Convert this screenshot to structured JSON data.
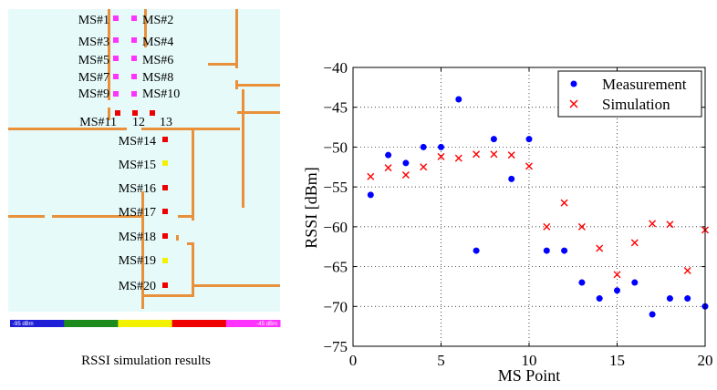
{
  "simulation_panel": {
    "caption": "RSSI simulation results",
    "scale_min_label": "-95 dBm",
    "scale_max_label": "-45 dBm",
    "scale_colors": [
      "#1f1fd8",
      "#1c8a1c",
      "#f2f200",
      "#ee0000",
      "#ff33ff"
    ],
    "background_color": "#e6fafa",
    "wall_color": "#e8913a",
    "ms_labels": [
      {
        "text": "MS#1",
        "anchor": "end"
      },
      {
        "text": "MS#2",
        "anchor": "start"
      },
      {
        "text": "MS#3",
        "anchor": "end"
      },
      {
        "text": "MS#4",
        "anchor": "start"
      },
      {
        "text": "MS#5",
        "anchor": "end"
      },
      {
        "text": "MS#6",
        "anchor": "start"
      },
      {
        "text": "MS#7",
        "anchor": "end"
      },
      {
        "text": "MS#8",
        "anchor": "start"
      },
      {
        "text": "MS#9",
        "anchor": "end"
      },
      {
        "text": "MS#10",
        "anchor": "start"
      },
      {
        "text": "MS#11",
        "anchor": "end"
      },
      {
        "text": "12",
        "anchor": "middle"
      },
      {
        "text": "13",
        "anchor": "start"
      },
      {
        "text": "MS#14",
        "anchor": "end"
      },
      {
        "text": "MS#15",
        "anchor": "end"
      },
      {
        "text": "MS#16",
        "anchor": "end"
      },
      {
        "text": "MS#17",
        "anchor": "end"
      },
      {
        "text": "MS#18",
        "anchor": "end"
      },
      {
        "text": "MS#19",
        "anchor": "end"
      },
      {
        "text": "MS#20",
        "anchor": "end"
      }
    ],
    "ms_marker_colors": [
      "#ff33ff",
      "#ff33ff",
      "#ff33ff",
      "#ff33ff",
      "#ff33ff",
      "#ff33ff",
      "#ff33ff",
      "#ff33ff",
      "#ff33ff",
      "#ff33ff",
      "#ee0000",
      "#ee0000",
      "#ee0000",
      "#ee0000",
      "#f2f200",
      "#ee0000",
      "#ee0000",
      "#ee0000",
      "#f2f200",
      "#ee0000"
    ]
  },
  "chart_data": {
    "type": "scatter",
    "title": "",
    "xlabel": "MS Point",
    "ylabel": "RSSI [dBm]",
    "xlim": [
      0,
      20
    ],
    "ylim": [
      -75,
      -40
    ],
    "xticks": [
      "0",
      "5",
      "10",
      "15",
      "20"
    ],
    "yticks": [
      "−40",
      "−45",
      "−50",
      "−55",
      "−60",
      "−65",
      "−70",
      "−75"
    ],
    "grid": true,
    "legend_position": "top-right",
    "series": [
      {
        "name": "Measurement",
        "marker": "circle",
        "color": "#0000ff",
        "x": [
          1,
          2,
          3,
          4,
          5,
          6,
          7,
          8,
          9,
          10,
          11,
          12,
          13,
          14,
          15,
          16,
          17,
          18,
          19,
          20
        ],
        "y": [
          -56,
          -51,
          -52,
          -50,
          -50,
          -44,
          -63,
          -49,
          -54,
          -49,
          -63,
          -63,
          -67,
          -69,
          -68,
          -67,
          -71,
          -69,
          -69,
          -70
        ]
      },
      {
        "name": "Simulation",
        "marker": "x",
        "color": "#ff0000",
        "x": [
          1,
          2,
          3,
          4,
          5,
          6,
          7,
          8,
          9,
          10,
          11,
          12,
          13,
          14,
          15,
          16,
          17,
          18,
          19,
          20
        ],
        "y": [
          -53.7,
          -52.6,
          -53.5,
          -52.5,
          -51.2,
          -51.4,
          -50.9,
          -50.9,
          -51.0,
          -52.4,
          -60.0,
          -57.0,
          -60.0,
          -62.7,
          -66.0,
          -62.0,
          -59.6,
          -59.7,
          -65.5,
          -60.4
        ]
      }
    ]
  }
}
